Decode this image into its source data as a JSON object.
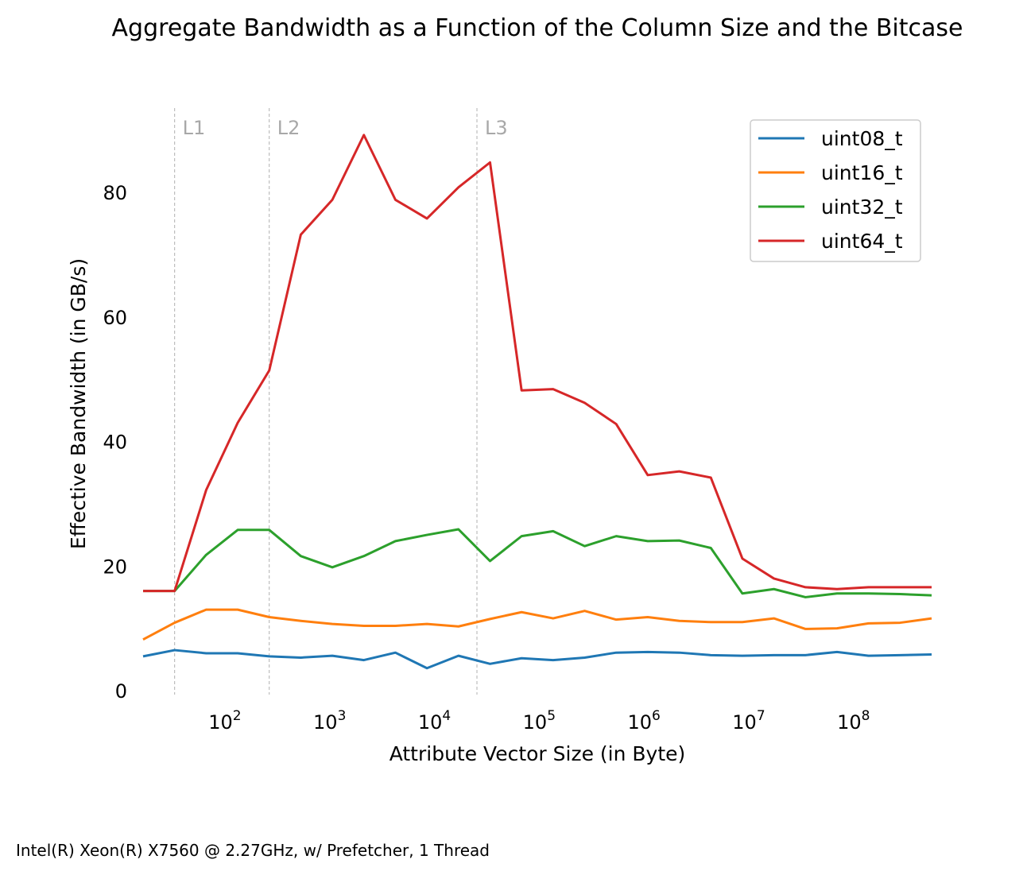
{
  "chart_data": {
    "type": "line",
    "title": "Aggregate Bandwidth as a Function of the Column Size and the Bitcase",
    "xlabel": "Attribute Vector Size (in Byte)",
    "ylabel": "Effective Bandwidth (in GB/s)",
    "xscale": "log2",
    "xlim": [
      16,
      536870912
    ],
    "ylim": [
      0,
      94
    ],
    "grid": false,
    "legend_position": "top-right",
    "x": [
      16,
      32,
      64,
      128,
      256,
      512,
      1024,
      2048,
      4096,
      8192,
      16384,
      32768,
      65536,
      131072,
      262144,
      524288,
      1048576,
      2097152,
      4194304,
      8388608,
      16777216,
      33554432,
      67108864,
      134217728,
      268435456,
      536870912
    ],
    "xticks": [
      {
        "value": 100,
        "base": "10",
        "exp": "2"
      },
      {
        "value": 1000,
        "base": "10",
        "exp": "3"
      },
      {
        "value": 10000,
        "base": "10",
        "exp": "4"
      },
      {
        "value": 100000,
        "base": "10",
        "exp": "5"
      },
      {
        "value": 1000000,
        "base": "10",
        "exp": "6"
      },
      {
        "value": 10000000,
        "base": "10",
        "exp": "7"
      },
      {
        "value": 100000000,
        "base": "10",
        "exp": "8"
      }
    ],
    "yticks": [
      {
        "value": 0,
        "label": "0"
      },
      {
        "value": 20,
        "label": "20"
      },
      {
        "value": 40,
        "label": "40"
      },
      {
        "value": 60,
        "label": "60"
      },
      {
        "value": 80,
        "label": "80"
      }
    ],
    "annotations": [
      {
        "label": "L1",
        "x": 32
      },
      {
        "label": "L2",
        "x": 256
      },
      {
        "label": "L3",
        "x": 24576
      }
    ],
    "series": [
      {
        "name": "uint08_t",
        "color": "#1f77b4",
        "values": [
          5.5,
          6.5,
          6.0,
          6.0,
          5.5,
          5.3,
          5.6,
          4.9,
          6.1,
          3.6,
          5.6,
          4.3,
          5.2,
          4.9,
          5.3,
          6.1,
          6.2,
          6.1,
          5.7,
          5.6,
          5.7,
          5.7,
          6.2,
          5.6,
          5.7,
          5.8
        ]
      },
      {
        "name": "uint16_t",
        "color": "#ff7f0e",
        "values": [
          8.2,
          10.9,
          13.0,
          13.0,
          11.8,
          11.2,
          10.7,
          10.4,
          10.4,
          10.7,
          10.3,
          11.5,
          12.6,
          11.6,
          12.8,
          11.4,
          11.8,
          11.2,
          11.0,
          11.0,
          11.6,
          9.9,
          10.0,
          10.8,
          10.9,
          11.6
        ]
      },
      {
        "name": "uint32_t",
        "color": "#2ca02c",
        "values": [
          16.0,
          16.0,
          21.8,
          25.8,
          25.8,
          21.6,
          19.8,
          21.6,
          24.0,
          25.0,
          25.9,
          20.8,
          24.8,
          25.6,
          23.2,
          24.8,
          24.0,
          24.1,
          22.9,
          15.6,
          16.3,
          15.0,
          15.6,
          15.6,
          15.5,
          15.3
        ]
      },
      {
        "name": "uint64_t",
        "color": "#d62728",
        "values": [
          16.0,
          16.0,
          32.2,
          43.0,
          51.4,
          73.2,
          78.8,
          89.2,
          78.8,
          75.8,
          80.8,
          84.8,
          48.2,
          48.4,
          46.2,
          42.8,
          34.6,
          35.2,
          34.2,
          21.2,
          18.0,
          16.6,
          16.3,
          16.6,
          16.6,
          16.6
        ]
      }
    ]
  },
  "footnote": "Intel(R) Xeon(R) X7560 @ 2.27GHz, w/ Prefetcher, 1 Thread"
}
